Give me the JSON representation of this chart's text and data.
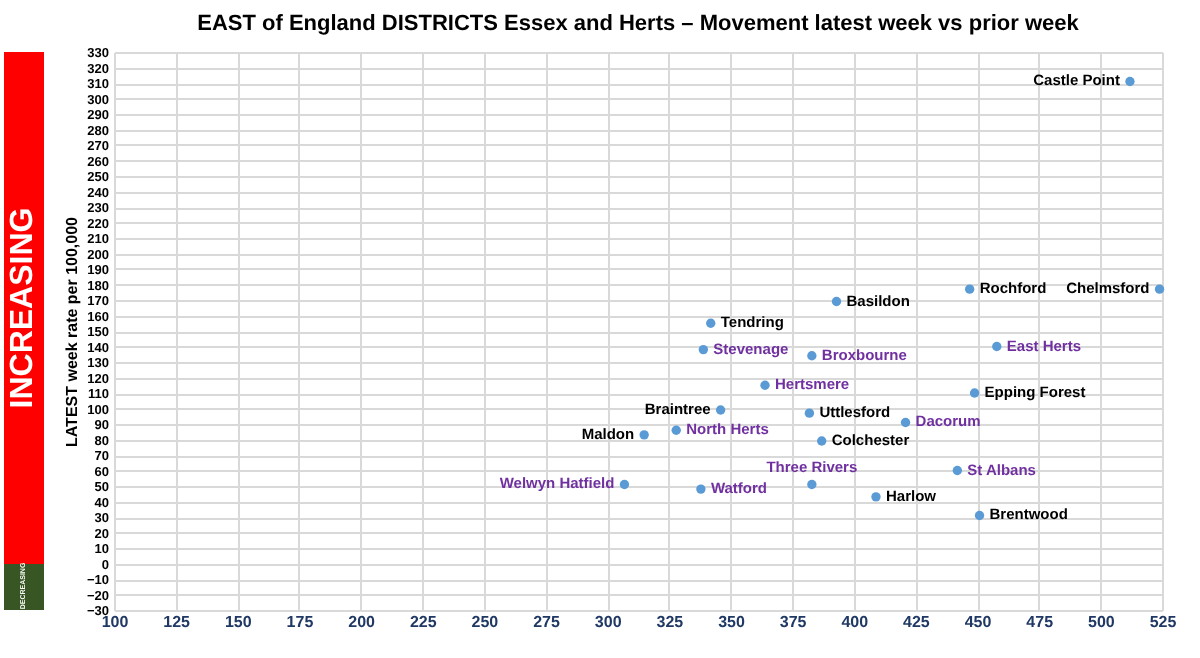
{
  "chart_data": {
    "type": "scatter",
    "title": "EAST of England DISTRICTS Essex and Herts – Movement latest week vs prior week",
    "ylabel": "LATEST week rate per 100,000",
    "xlim": [
      100,
      525
    ],
    "xticks": [
      100,
      125,
      150,
      175,
      200,
      225,
      250,
      275,
      300,
      325,
      350,
      375,
      400,
      425,
      450,
      475,
      500,
      525
    ],
    "ylim": [
      -30,
      330
    ],
    "yticks": [
      -30,
      -20,
      -10,
      0,
      10,
      20,
      30,
      40,
      50,
      60,
      70,
      80,
      90,
      100,
      110,
      120,
      130,
      140,
      150,
      160,
      170,
      180,
      190,
      200,
      210,
      220,
      230,
      240,
      250,
      260,
      270,
      280,
      290,
      300,
      310,
      320,
      330
    ],
    "grid": true,
    "marker": "circle",
    "series": [
      {
        "color": "#5b9bd5",
        "x": [
          512,
          524,
          447,
          393,
          342,
          449,
          382,
          346,
          315,
          387,
          451,
          409
        ],
        "values": [
          311,
          177,
          177,
          169,
          155,
          110,
          97,
          99,
          83,
          79,
          31,
          43
        ]
      },
      {
        "color": "#5b9bd5",
        "x": [
          383,
          339,
          458,
          364,
          421,
          328,
          442,
          307,
          338,
          383
        ],
        "values": [
          134,
          138,
          140,
          115,
          91,
          86,
          60,
          51,
          48,
          51
        ]
      }
    ],
    "annotations": [
      {
        "text": "Castle Point",
        "x": 512,
        "y": 311
      },
      {
        "text": "Chelmsford",
        "x": 524,
        "y": 177
      },
      {
        "text": "Rochford",
        "x": 447,
        "y": 177
      },
      {
        "text": "Basildon",
        "x": 393,
        "y": 169
      },
      {
        "text": "Tendring",
        "x": 342,
        "y": 155
      },
      {
        "text": "Epping Forest",
        "x": 449,
        "y": 110
      },
      {
        "text": "Uttlesford",
        "x": 382,
        "y": 97
      },
      {
        "text": "Braintree",
        "x": 346,
        "y": 99
      },
      {
        "text": "Maldon",
        "x": 315,
        "y": 83
      },
      {
        "text": "Colchester",
        "x": 387,
        "y": 79
      },
      {
        "text": "Brentwood",
        "x": 451,
        "y": 31
      },
      {
        "text": "Harlow",
        "x": 409,
        "y": 43
      },
      {
        "text": "Broxbourne",
        "x": 383,
        "y": 134
      },
      {
        "text": "Stevenage",
        "x": 339,
        "y": 138
      },
      {
        "text": "East Herts",
        "x": 458,
        "y": 140
      },
      {
        "text": "Hertsmere",
        "x": 364,
        "y": 115
      },
      {
        "text": "Dacorum",
        "x": 421,
        "y": 91
      },
      {
        "text": "North Herts",
        "x": 328,
        "y": 86
      },
      {
        "text": "St Albans",
        "x": 442,
        "y": 60
      },
      {
        "text": "Welwyn Hatfield",
        "x": 307,
        "y": 51
      },
      {
        "text": "Watford",
        "x": 338,
        "y": 48
      },
      {
        "text": "Three Rivers",
        "x": 383,
        "y": 51
      },
      "INCREASING",
      "DECREASING"
    ]
  }
}
